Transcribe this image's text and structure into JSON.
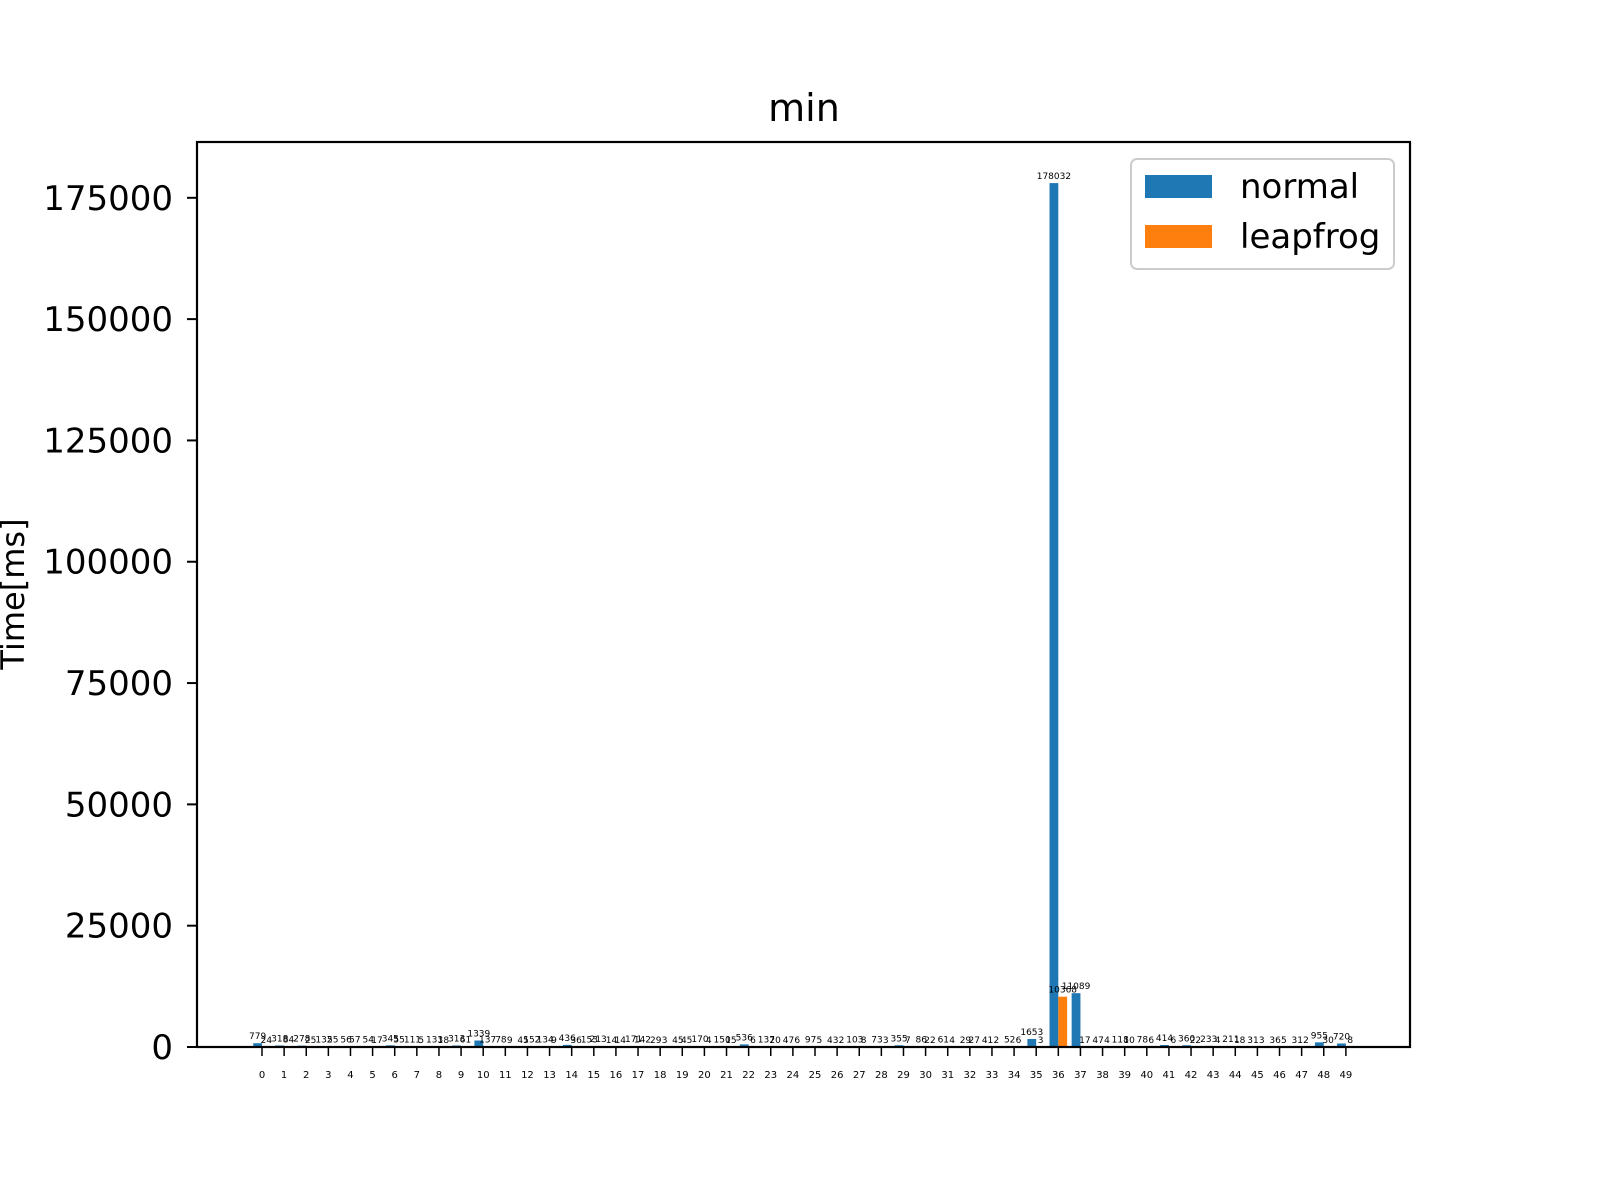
{
  "chart_data": {
    "type": "bar",
    "title": "min",
    "xlabel": "",
    "ylabel": "Time[ms]",
    "ylim": [
      0,
      186500
    ],
    "yticks": [
      0,
      25000,
      50000,
      75000,
      100000,
      125000,
      150000,
      175000
    ],
    "ytick_labels": [
      "0",
      "25000",
      "50000",
      "75000",
      "100000",
      "125000",
      "150000",
      "175000"
    ],
    "categories": [
      "0",
      "1",
      "2",
      "3",
      "4",
      "5",
      "6",
      "7",
      "8",
      "9",
      "10",
      "11",
      "12",
      "13",
      "14",
      "15",
      "16",
      "17",
      "18",
      "19",
      "20",
      "21",
      "22",
      "23",
      "24",
      "25",
      "26",
      "27",
      "28",
      "29",
      "30",
      "31",
      "32",
      "33",
      "34",
      "35",
      "36",
      "37",
      "38",
      "39",
      "40",
      "41",
      "42",
      "43",
      "44",
      "45",
      "46",
      "47",
      "48",
      "49"
    ],
    "series": [
      {
        "name": "normal",
        "color": "#1f77b4",
        "values": [
          779,
          318,
          278,
          132,
          56,
          54,
          345,
          111,
          133,
          313,
          1339,
          78,
          45,
          134,
          436,
          153,
          14,
          171,
          29,
          45,
          170,
          150,
          536,
          137,
          47,
          97,
          43,
          103,
          73,
          355,
          86,
          61,
          29,
          41,
          52,
          1653,
          178032,
          11089,
          47,
          118,
          78,
          414,
          360,
          233,
          211,
          31,
          36,
          31,
          955,
          720
        ]
      },
      {
        "name": "leapfrog",
        "color": "#ff7f0e",
        "values": [
          24,
          84,
          25,
          55,
          57,
          17,
          55,
          5,
          18,
          61,
          137,
          9,
          152,
          9,
          36,
          213,
          14,
          142,
          3,
          45,
          4,
          15,
          6,
          20,
          6,
          5,
          2,
          8,
          3,
          7,
          22,
          4,
          27,
          2,
          6,
          3,
          10368,
          17,
          4,
          10,
          6,
          6,
          22,
          4,
          18,
          3,
          5,
          2,
          30,
          8
        ]
      }
    ],
    "legend": {
      "placement": "top-right",
      "entries": [
        "normal",
        "leapfrog"
      ]
    },
    "grid": false
  }
}
